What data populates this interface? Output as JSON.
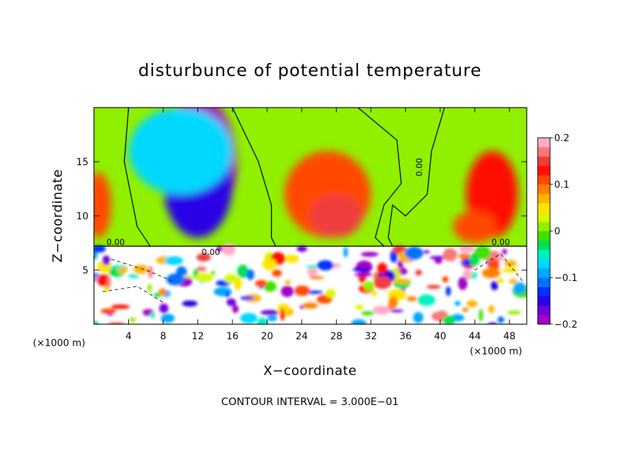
{
  "chart_data": {
    "type": "heatmap",
    "title": "disturbunce of potential temperature",
    "xlabel": "X−coordinate",
    "ylabel": "Z−coordinate",
    "x_unit": "(×1000 m)",
    "z_unit": "(×1000 m)",
    "xlim": [
      0,
      50
    ],
    "ylim": [
      0,
      20
    ],
    "x_ticks": [
      4,
      8,
      12,
      16,
      20,
      24,
      28,
      32,
      36,
      40,
      44,
      48
    ],
    "y_ticks": [
      5,
      10,
      15
    ],
    "colorbar": {
      "range": [
        -0.2,
        0.2
      ],
      "ticks": [
        0.2,
        0.1,
        0,
        -0.1,
        -0.2
      ],
      "tick_labels": [
        "0.2",
        "0.1",
        "0",
        "−0.1",
        "−0.2"
      ],
      "colors": [
        "#a000c8",
        "#6e00dc",
        "#2a00e6",
        "#0030ff",
        "#0070ff",
        "#00a8ff",
        "#00d8ff",
        "#00f0c0",
        "#00e050",
        "#40e000",
        "#90f000",
        "#d8f800",
        "#ffe400",
        "#ffb400",
        "#ff8000",
        "#ff4800",
        "#ff1000",
        "#f03c3c",
        "#f87878",
        "#ffaac8"
      ]
    },
    "contour_label": "0.00",
    "contour_interval": "CONTOUR INTERVAL = 3.000E−01",
    "grid": false,
    "regions": [
      {
        "x": 12,
        "z": 15,
        "value": -0.2,
        "r": [
          4.5,
          6
        ]
      },
      {
        "x": 12,
        "z": 13,
        "value": -0.15,
        "r": [
          4,
          5
        ]
      },
      {
        "x": 10,
        "z": 16,
        "value": -0.08,
        "r": [
          6,
          4
        ]
      },
      {
        "x": 27,
        "z": 12,
        "value": 0.12,
        "r": [
          5,
          4
        ]
      },
      {
        "x": 28,
        "z": 10,
        "value": 0.15,
        "r": [
          3,
          2
        ]
      },
      {
        "x": 46,
        "z": 12,
        "value": 0.13,
        "r": [
          3,
          4
        ]
      },
      {
        "x": 0.5,
        "z": 11,
        "value": 0.1,
        "r": [
          1.5,
          3
        ]
      },
      {
        "x": 44,
        "z": 9,
        "value": 0.12,
        "r": [
          2.5,
          1.5
        ]
      }
    ]
  }
}
